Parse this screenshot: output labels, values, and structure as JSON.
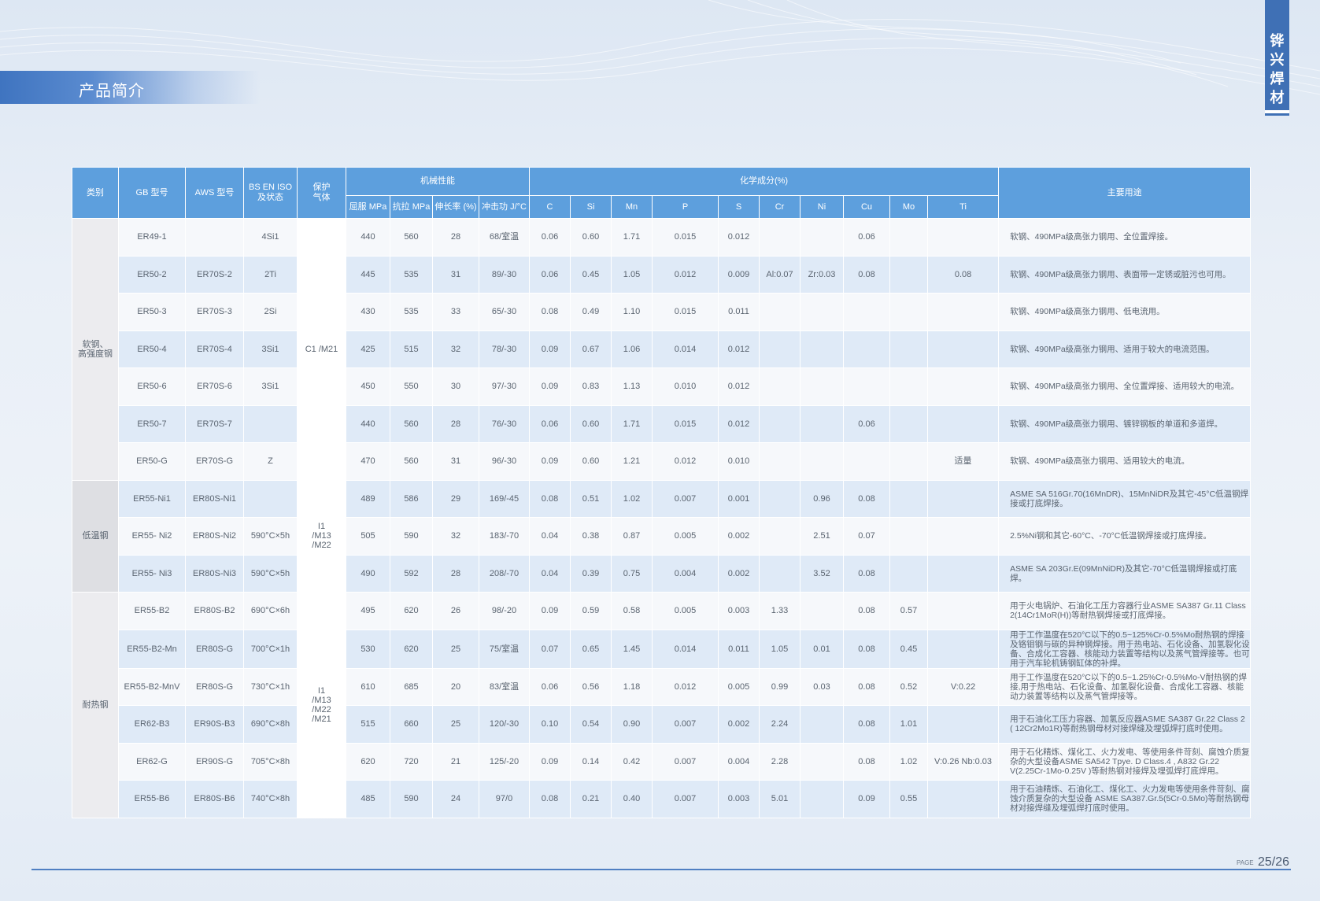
{
  "section_title": "产品简介",
  "brand": [
    "铧",
    "兴",
    "焊",
    "材"
  ],
  "footer": {
    "page_label": "PAGE",
    "page_number": "25/26"
  },
  "table": {
    "headers": {
      "category": "类别",
      "gb": "GB 型号",
      "aws": "AWS 型号",
      "bs_line1": "BS EN ISO",
      "bs_line2": "及状态",
      "gas_line1": "保护",
      "gas_line2": "气体",
      "mech_group": "机械性能",
      "chem_group": "化学成分(%)",
      "usage": "主要用途",
      "mech": [
        "屈服 MPa",
        "抗拉 MPa",
        "伸长率 (%)",
        "冲击功 J/°C"
      ],
      "chem": [
        "C",
        "Si",
        "Mn",
        "P",
        "S",
        "Cr",
        "Ni",
        "Cu",
        "Mo",
        "Ti"
      ]
    },
    "groups": [
      {
        "category_line1": "软钢、",
        "category_line2": "高强度钢",
        "gas": "C1 /M21"
      },
      {
        "category_line1": "低温钢",
        "category_line2": "",
        "gas": "I1\n/M13\n/M22"
      },
      {
        "category_line1": "耐热钢",
        "category_line2": "",
        "gas": "I1\n/M13\n/M22\n/M21"
      }
    ],
    "rows": [
      {
        "gb": "ER49-1",
        "aws": "",
        "bs": "4Si1",
        "yield": "440",
        "tensile": "560",
        "elong": "28",
        "impact": "68/室温",
        "C": "0.06",
        "Si": "0.60",
        "Mn": "1.71",
        "P": "0.015",
        "S": "0.012",
        "Cr": "",
        "Ni": "",
        "Cu": "0.06",
        "Mo": "",
        "Ti": "",
        "usage": "软钢、490MPa级高张力钢用、全位置焊接。"
      },
      {
        "gb": "ER50-2",
        "aws": "ER70S-2",
        "bs": "2Ti",
        "yield": "445",
        "tensile": "535",
        "elong": "31",
        "impact": "89/-30",
        "C": "0.06",
        "Si": "0.45",
        "Mn": "1.05",
        "P": "0.012",
        "S": "0.009",
        "Cr": "Al:0.07",
        "Ni": "Zr:0.03",
        "Cu": "0.08",
        "Mo": "",
        "Ti": "0.08",
        "usage": "软钢、490MPa级高张力钢用、表面带一定锈或脏污也可用。"
      },
      {
        "gb": "ER50-3",
        "aws": "ER70S-3",
        "bs": "2Si",
        "yield": "430",
        "tensile": "535",
        "elong": "33",
        "impact": "65/-30",
        "C": "0.08",
        "Si": "0.49",
        "Mn": "1.10",
        "P": "0.015",
        "S": "0.011",
        "Cr": "",
        "Ni": "",
        "Cu": "",
        "Mo": "",
        "Ti": "",
        "usage": "软钢、490MPa级高张力钢用、低电流用。"
      },
      {
        "gb": "ER50-4",
        "aws": "ER70S-4",
        "bs": "3Si1",
        "yield": "425",
        "tensile": "515",
        "elong": "32",
        "impact": "78/-30",
        "C": "0.09",
        "Si": "0.67",
        "Mn": "1.06",
        "P": "0.014",
        "S": "0.012",
        "Cr": "",
        "Ni": "",
        "Cu": "",
        "Mo": "",
        "Ti": "",
        "usage": "软钢、490MPa级高张力钢用、适用于较大的电流范围。"
      },
      {
        "gb": "ER50-6",
        "aws": "ER70S-6",
        "bs": "3Si1",
        "yield": "450",
        "tensile": "550",
        "elong": "30",
        "impact": "97/-30",
        "C": "0.09",
        "Si": "0.83",
        "Mn": "1.13",
        "P": "0.010",
        "S": "0.012",
        "Cr": "",
        "Ni": "",
        "Cu": "",
        "Mo": "",
        "Ti": "",
        "usage": "软钢、490MPa级高张力钢用、全位置焊接、适用较大的电流。"
      },
      {
        "gb": "ER50-7",
        "aws": "ER70S-7",
        "bs": "",
        "yield": "440",
        "tensile": "560",
        "elong": "28",
        "impact": "76/-30",
        "C": "0.06",
        "Si": "0.60",
        "Mn": "1.71",
        "P": "0.015",
        "S": "0.012",
        "Cr": "",
        "Ni": "",
        "Cu": "0.06",
        "Mo": "",
        "Ti": "",
        "usage": "软钢、490MPa级高张力钢用、镀锌钢板的单道和多道焊。"
      },
      {
        "gb": "ER50-G",
        "aws": "ER70S-G",
        "bs": "Z",
        "yield": "470",
        "tensile": "560",
        "elong": "31",
        "impact": "96/-30",
        "C": "0.09",
        "Si": "0.60",
        "Mn": "1.21",
        "P": "0.012",
        "S": "0.010",
        "Cr": "",
        "Ni": "",
        "Cu": "",
        "Mo": "",
        "Ti": "适量",
        "usage": "软钢、490MPa级高张力钢用、适用较大的电流。"
      },
      {
        "gb": "ER55-Ni1",
        "aws": "ER80S-Ni1",
        "bs": "",
        "yield": "489",
        "tensile": "586",
        "elong": "29",
        "impact": "169/-45",
        "C": "0.08",
        "Si": "0.51",
        "Mn": "1.02",
        "P": "0.007",
        "S": "0.001",
        "Cr": "",
        "Ni": "0.96",
        "Cu": "0.08",
        "Mo": "",
        "Ti": "",
        "usage": "ASME SA 516Gr.70(16MnDR)、15MnNiDR及其它-45°C低温钢焊接或打底焊接。"
      },
      {
        "gb": "ER55- Ni2",
        "aws": "ER80S-Ni2",
        "bs": "590°C×5h",
        "yield": "505",
        "tensile": "590",
        "elong": "32",
        "impact": "183/-70",
        "C": "0.04",
        "Si": "0.38",
        "Mn": "0.87",
        "P": "0.005",
        "S": "0.002",
        "Cr": "",
        "Ni": "2.51",
        "Cu": "0.07",
        "Mo": "",
        "Ti": "",
        "usage": "2.5%Ni钢和其它-60°C、-70°C低温钢焊接或打底焊接。"
      },
      {
        "gb": "ER55- Ni3",
        "aws": "ER80S-Ni3",
        "bs": "590°C×5h",
        "yield": "490",
        "tensile": "592",
        "elong": "28",
        "impact": "208/-70",
        "C": "0.04",
        "Si": "0.39",
        "Mn": "0.75",
        "P": "0.004",
        "S": "0.002",
        "Cr": "",
        "Ni": "3.52",
        "Cu": "0.08",
        "Mo": "",
        "Ti": "",
        "usage": "ASME SA 203Gr.E(09MnNiDR)及其它-70°C低温钢焊接或打底焊。"
      },
      {
        "gb": "ER55-B2",
        "aws": "ER80S-B2",
        "bs": "690°C×6h",
        "yield": "495",
        "tensile": "620",
        "elong": "26",
        "impact": "98/-20",
        "C": "0.09",
        "Si": "0.59",
        "Mn": "0.58",
        "P": "0.005",
        "S": "0.003",
        "Cr": "1.33",
        "Ni": "",
        "Cu": "0.08",
        "Mo": "0.57",
        "Ti": "",
        "usage": "用于火电锅炉、石油化工压力容器行业ASME SA387 Gr.11 Class 2(14Cr1MoR(H))等耐热钢焊接或打底焊接。"
      },
      {
        "gb": "ER55-B2-Mn",
        "aws": "ER80S-G",
        "bs": "700°C×1h",
        "yield": "530",
        "tensile": "620",
        "elong": "25",
        "impact": "75/室温",
        "C": "0.07",
        "Si": "0.65",
        "Mn": "1.45",
        "P": "0.014",
        "S": "0.011",
        "Cr": "1.05",
        "Ni": "0.01",
        "Cu": "0.08",
        "Mo": "0.45",
        "Ti": "",
        "usage": "用于工作温度在520°C以下的0.5~125%Cr-0.5%Mo耐热钢的焊接及铬钼钢与碳的异种钢焊接。用于热电站、石化设备、加氢裂化设备、合成化工容器、核能动力装置等结构以及蒸气管焊接等。也可用于汽车轮机铸钢缸体的补焊。"
      },
      {
        "gb": "ER55-B2-MnV",
        "aws": "ER80S-G",
        "bs": "730°C×1h",
        "yield": "610",
        "tensile": "685",
        "elong": "20",
        "impact": "83/室温",
        "C": "0.06",
        "Si": "0.56",
        "Mn": "1.18",
        "P": "0.012",
        "S": "0.005",
        "Cr": "0.99",
        "Ni": "0.03",
        "Cu": "0.08",
        "Mo": "0.52",
        "Ti": "V:0.22",
        "usage": "用于工作温度在520°C以下的0.5~1.25%Cr-0.5%Mo-V耐热钢的焊接,用于热电站、石化设备、加氢裂化设备、合成化工容器、核能动力装置等结构以及蒸气管焊接等。"
      },
      {
        "gb": "ER62-B3",
        "aws": "ER90S-B3",
        "bs": "690°C×8h",
        "yield": "515",
        "tensile": "660",
        "elong": "25",
        "impact": "120/-30",
        "C": "0.10",
        "Si": "0.54",
        "Mn": "0.90",
        "P": "0.007",
        "S": "0.002",
        "Cr": "2.24",
        "Ni": "",
        "Cu": "0.08",
        "Mo": "1.01",
        "Ti": "",
        "usage": "用于石油化工压力容器、加氢反应器ASME SA387 Gr.22 Class 2 ( 12Cr2Mo1R)等耐热钢母材对接焊缝及埋弧焊打底时使用。"
      },
      {
        "gb": "ER62-G",
        "aws": "ER90S-G",
        "bs": "705°C×8h",
        "yield": "620",
        "tensile": "720",
        "elong": "21",
        "impact": "125/-20",
        "C": "0.09",
        "Si": "0.14",
        "Mn": "0.42",
        "P": "0.007",
        "S": "0.004",
        "Cr": "2.28",
        "Ni": "",
        "Cu": "0.08",
        "Mo": "1.02",
        "Ti": "V:0.26 Nb:0.03",
        "usage": "用于石化精炼、煤化工、火力发电、等使用条件苛刻、腐蚀介质复杂的大型设备ASME SA542 Tpye. D Class.4 , A832 Gr.22 V(2.25Cr-1Mo-0.25V )等耐热钢对接焊及埋弧焊打底焊用。"
      },
      {
        "gb": "ER55-B6",
        "aws": "ER80S-B6",
        "bs": "740°C×8h",
        "yield": "485",
        "tensile": "590",
        "elong": "24",
        "impact": "97/0",
        "C": "0.08",
        "Si": "0.21",
        "Mn": "0.40",
        "P": "0.007",
        "S": "0.003",
        "Cr": "5.01",
        "Ni": "",
        "Cu": "0.09",
        "Mo": "0.55",
        "Ti": "",
        "usage": "用于石油精炼、石油化工、煤化工、火力发电等使用条件苛刻、腐蚀介质复杂的大型设备 ASME SA387.Gr.5(5Cr-0.5Mo)等耐热钢母材对接焊缝及埋弧焊打底时使用。"
      }
    ]
  }
}
